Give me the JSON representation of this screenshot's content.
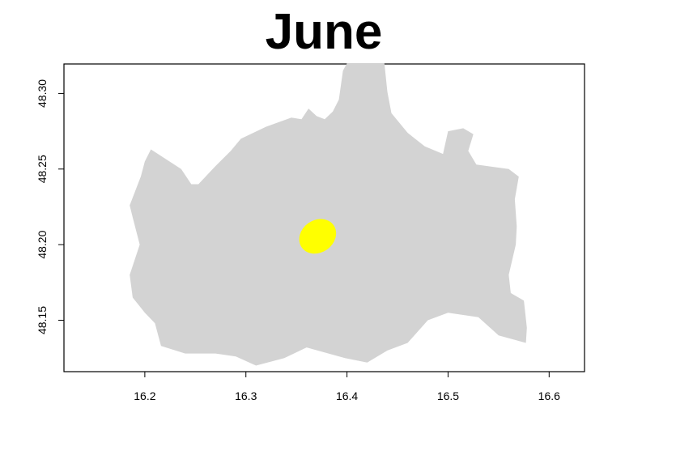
{
  "title": "June",
  "map": {
    "xlim": [
      16.12,
      16.635
    ],
    "ylim": [
      48.116,
      48.3195
    ],
    "x_ticks": [
      {
        "value": 16.2,
        "label": "16.2"
      },
      {
        "value": 16.3,
        "label": "16.3"
      },
      {
        "value": 16.4,
        "label": "16.4"
      },
      {
        "value": 16.5,
        "label": "16.5"
      },
      {
        "value": 16.6,
        "label": "16.6"
      }
    ],
    "y_ticks": [
      {
        "value": 48.15,
        "label": "48.15"
      },
      {
        "value": 48.2,
        "label": "48.20"
      },
      {
        "value": 48.25,
        "label": "48.25"
      },
      {
        "value": 48.3,
        "label": "48.30"
      }
    ],
    "region_color": "#d3d3d3",
    "highlight_color": "#ffff00",
    "highlight_center": [
      16.371,
      48.2055
    ],
    "region_outline": [
      [
        16.4,
        48.32
      ],
      [
        16.437,
        48.32
      ],
      [
        16.44,
        48.301
      ],
      [
        16.444,
        48.287
      ],
      [
        16.46,
        48.274
      ],
      [
        16.477,
        48.265
      ],
      [
        16.495,
        48.26
      ],
      [
        16.5,
        48.275
      ],
      [
        16.515,
        48.277
      ],
      [
        16.525,
        48.273
      ],
      [
        16.52,
        48.262
      ],
      [
        16.528,
        48.253
      ],
      [
        16.56,
        48.25
      ],
      [
        16.57,
        48.245
      ],
      [
        16.566,
        48.23
      ],
      [
        16.568,
        48.212
      ],
      [
        16.567,
        48.2
      ],
      [
        16.56,
        48.18
      ],
      [
        16.562,
        48.168
      ],
      [
        16.575,
        48.163
      ],
      [
        16.578,
        48.145
      ],
      [
        16.577,
        48.135
      ],
      [
        16.55,
        48.14
      ],
      [
        16.53,
        48.152
      ],
      [
        16.5,
        48.155
      ],
      [
        16.48,
        48.15
      ],
      [
        16.46,
        48.135
      ],
      [
        16.44,
        48.13
      ],
      [
        16.42,
        48.122
      ],
      [
        16.398,
        48.125
      ],
      [
        16.36,
        48.132
      ],
      [
        16.338,
        48.125
      ],
      [
        16.31,
        48.12
      ],
      [
        16.29,
        48.126
      ],
      [
        16.27,
        48.128
      ],
      [
        16.24,
        48.128
      ],
      [
        16.216,
        48.133
      ],
      [
        16.21,
        48.148
      ],
      [
        16.2,
        48.155
      ],
      [
        16.188,
        48.165
      ],
      [
        16.185,
        48.18
      ],
      [
        16.195,
        48.2
      ],
      [
        16.188,
        48.218
      ],
      [
        16.185,
        48.226
      ],
      [
        16.196,
        48.245
      ],
      [
        16.2,
        48.255
      ],
      [
        16.206,
        48.263
      ],
      [
        16.236,
        48.25
      ],
      [
        16.246,
        48.24
      ],
      [
        16.253,
        48.24
      ],
      [
        16.27,
        48.252
      ],
      [
        16.285,
        48.262
      ],
      [
        16.295,
        48.27
      ],
      [
        16.32,
        48.278
      ],
      [
        16.345,
        48.284
      ],
      [
        16.355,
        48.283
      ],
      [
        16.362,
        48.29
      ],
      [
        16.37,
        48.285
      ],
      [
        16.378,
        48.283
      ],
      [
        16.386,
        48.288
      ],
      [
        16.392,
        48.296
      ],
      [
        16.396,
        48.315
      ]
    ]
  }
}
